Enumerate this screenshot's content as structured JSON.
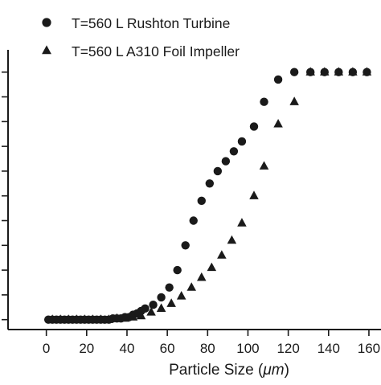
{
  "chart_data": {
    "type": "scatter",
    "title": "",
    "xlabel": "Particle Size (",
    "xlabel_unit": "μm",
    "xlabel_suffix": ")",
    "ylabel": "",
    "xlim": [
      -19,
      166
    ],
    "x_ticks": [
      "0",
      "20",
      "40",
      "60",
      "80",
      "100",
      "120",
      "140",
      "160"
    ],
    "x_tick_values": [
      0,
      20,
      40,
      60,
      80,
      100,
      120,
      140,
      160
    ],
    "ylim": [
      -0.04,
      1.09
    ],
    "y_tick_values": [
      0,
      0.1,
      0.2,
      0.3,
      0.4,
      0.5,
      0.6,
      0.7,
      0.8,
      0.9,
      1.0
    ],
    "grid": false,
    "legend_position": "top-left",
    "series": [
      {
        "name": "T=560 L Rushton Turbine",
        "marker": "circle",
        "color": "#1a1a1a",
        "x": [
          1,
          3,
          5,
          7,
          9,
          11,
          13,
          15,
          17,
          19,
          21,
          23,
          25,
          27,
          29,
          31,
          33,
          35,
          37,
          39,
          41,
          43,
          45,
          47,
          49,
          53,
          57,
          61,
          65,
          69,
          73,
          77,
          81,
          85,
          89,
          93,
          97,
          103,
          108,
          115,
          123,
          131,
          138,
          145,
          152,
          159
        ],
        "y": [
          0.0,
          0.0,
          0.0,
          0.0,
          0.0,
          0.0,
          0.0,
          0.0,
          0.0,
          0.0,
          0.0,
          0.0,
          0.0,
          0.0,
          0.0,
          0.0,
          0.005,
          0.005,
          0.005,
          0.01,
          0.01,
          0.02,
          0.025,
          0.035,
          0.045,
          0.06,
          0.09,
          0.13,
          0.2,
          0.3,
          0.4,
          0.48,
          0.55,
          0.6,
          0.64,
          0.68,
          0.72,
          0.78,
          0.88,
          0.97,
          1.0,
          1.0,
          1.0,
          1.0,
          1.0,
          1.0
        ]
      },
      {
        "name": "T=560 L A310 Foil Impeller",
        "marker": "triangle",
        "color": "#1a1a1a",
        "x": [
          3,
          7,
          11,
          15,
          19,
          23,
          27,
          31,
          35,
          39,
          43,
          47,
          52,
          57,
          62,
          67,
          72,
          77,
          82,
          87,
          92,
          97,
          103,
          108,
          115,
          123,
          131,
          138,
          145,
          152,
          159
        ],
        "y": [
          0.0,
          0.0,
          0.0,
          0.0,
          0.0,
          0.0,
          0.0,
          0.0,
          0.005,
          0.005,
          0.01,
          0.015,
          0.03,
          0.045,
          0.065,
          0.095,
          0.13,
          0.17,
          0.21,
          0.26,
          0.32,
          0.39,
          0.5,
          0.62,
          0.79,
          0.88,
          1.0,
          1.0,
          1.0,
          1.0,
          1.0
        ]
      }
    ]
  }
}
